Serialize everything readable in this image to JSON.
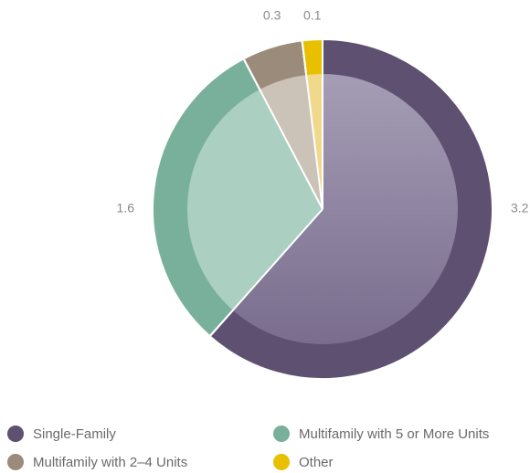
{
  "chart_data": {
    "type": "pie",
    "categories": [
      "Single-Family",
      "Multifamily with 5 or More Units",
      "Multifamily with 2–4 Units",
      "Other"
    ],
    "values": [
      3.2,
      1.6,
      0.3,
      0.1
    ],
    "colors": [
      "#5e5070",
      "#79b09b",
      "#9b8b7a",
      "#e8c000"
    ],
    "inner_colors": [
      "#9b91ad",
      "#abcfc1",
      "#cbc2b8",
      "#f1d98c"
    ]
  }
}
